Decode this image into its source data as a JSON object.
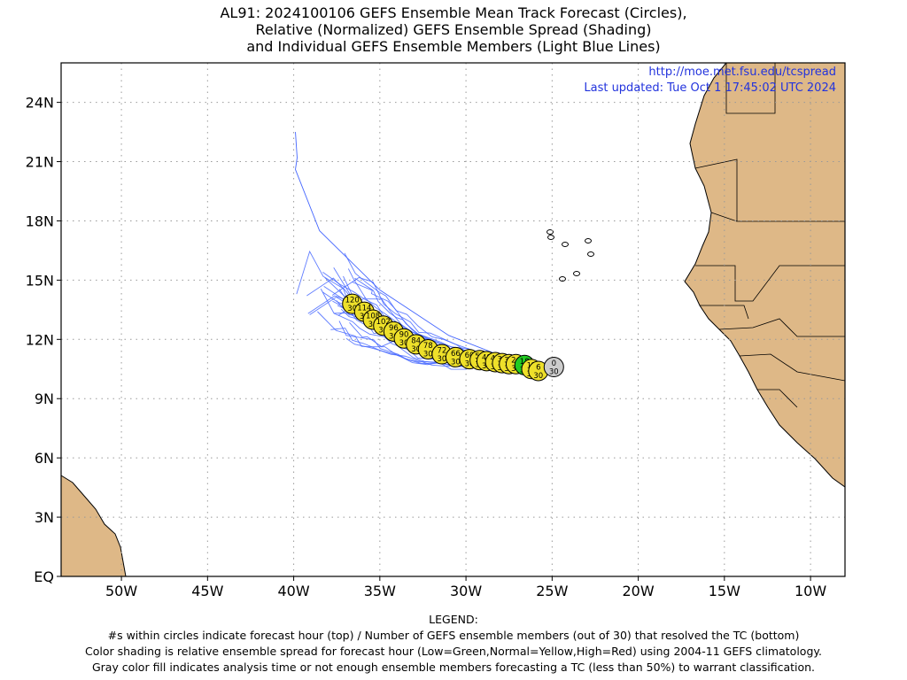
{
  "title": {
    "line1": "AL91: 2024100106 GEFS Ensemble Mean Track Forecast (Circles),",
    "line2": "Relative (Normalized) GEFS Ensemble Spread (Shading)",
    "line3": "and Individual GEFS Ensemble Members (Light Blue Lines)"
  },
  "source": {
    "url": "http://moe.met.fsu.edu/tcspread",
    "updated": "Last updated: Tue Oct 1 17:45:02 UTC 2024"
  },
  "axes": {
    "lon_range": [
      -53.5,
      -8
    ],
    "lat_range": [
      0,
      26
    ],
    "lat_ticks": [
      {
        "lat": 0,
        "label": "EQ"
      },
      {
        "lat": 3,
        "label": "3N"
      },
      {
        "lat": 6,
        "label": "6N"
      },
      {
        "lat": 9,
        "label": "9N"
      },
      {
        "lat": 12,
        "label": "12N"
      },
      {
        "lat": 15,
        "label": "15N"
      },
      {
        "lat": 18,
        "label": "18N"
      },
      {
        "lat": 21,
        "label": "21N"
      },
      {
        "lat": 24,
        "label": "24N"
      }
    ],
    "lon_ticks": [
      {
        "lon": -50,
        "label": "50W"
      },
      {
        "lon": -45,
        "label": "45W"
      },
      {
        "lon": -40,
        "label": "40W"
      },
      {
        "lon": -35,
        "label": "35W"
      },
      {
        "lon": -30,
        "label": "30W"
      },
      {
        "lon": -25,
        "label": "25W"
      },
      {
        "lon": -20,
        "label": "20W"
      },
      {
        "lon": -15,
        "label": "15W"
      },
      {
        "lon": -10,
        "label": "10W"
      }
    ],
    "grid": true
  },
  "colors": {
    "land": "#deb887",
    "ocean": "#ffffff",
    "member_tracks": "#4466ff",
    "circle_normal": "#eee02a",
    "circle_low": "#22cc22",
    "circle_gray": "#cccccc",
    "grid": "#999999"
  },
  "mean_track": [
    {
      "hour": "0",
      "members": "30",
      "lon": -24.9,
      "lat": 10.6,
      "class": "gray"
    },
    {
      "hour": "6",
      "members": "30",
      "lon": -25.8,
      "lat": 10.4,
      "class": "normal"
    },
    {
      "hour": "12",
      "members": "30",
      "lon": -26.2,
      "lat": 10.5,
      "class": "normal"
    },
    {
      "hour": "18",
      "members": "30",
      "lon": -26.6,
      "lat": 10.7,
      "class": "low"
    },
    {
      "hour": "24",
      "members": "30",
      "lon": -27.1,
      "lat": 10.75,
      "class": "normal"
    },
    {
      "hour": "30",
      "members": "30",
      "lon": -27.5,
      "lat": 10.75,
      "class": "normal"
    },
    {
      "hour": "36",
      "members": "30",
      "lon": -27.9,
      "lat": 10.8,
      "class": "normal"
    },
    {
      "hour": "42",
      "members": "30",
      "lon": -28.3,
      "lat": 10.85,
      "class": "normal"
    },
    {
      "hour": "48",
      "members": "30",
      "lon": -28.8,
      "lat": 10.9,
      "class": "normal"
    },
    {
      "hour": "54",
      "members": "30",
      "lon": -29.2,
      "lat": 10.95,
      "class": "normal"
    },
    {
      "hour": "60",
      "members": "30",
      "lon": -29.8,
      "lat": 11.0,
      "class": "normal"
    },
    {
      "hour": "66",
      "members": "30",
      "lon": -30.6,
      "lat": 11.1,
      "class": "normal"
    },
    {
      "hour": "72",
      "members": "30",
      "lon": -31.4,
      "lat": 11.25,
      "class": "normal"
    },
    {
      "hour": "78",
      "members": "30",
      "lon": -32.2,
      "lat": 11.5,
      "class": "normal"
    },
    {
      "hour": "84",
      "members": "30",
      "lon": -32.9,
      "lat": 11.75,
      "class": "normal"
    },
    {
      "hour": "90",
      "members": "30",
      "lon": -33.6,
      "lat": 12.05,
      "class": "normal"
    },
    {
      "hour": "96",
      "members": "30",
      "lon": -34.2,
      "lat": 12.4,
      "class": "normal"
    },
    {
      "hour": "102",
      "members": "30",
      "lon": -34.8,
      "lat": 12.7,
      "class": "normal"
    },
    {
      "hour": "108",
      "members": "30",
      "lon": -35.4,
      "lat": 13.0,
      "class": "normal"
    },
    {
      "hour": "114",
      "members": "30",
      "lon": -35.9,
      "lat": 13.4,
      "class": "normal"
    },
    {
      "hour": "120",
      "members": "30",
      "lon": -36.6,
      "lat": 13.8,
      "class": "normal"
    }
  ],
  "legend": {
    "heading": "LEGEND:",
    "line1": "#s within circles indicate forecast hour (top) / Number of GEFS ensemble members (out of 30) that resolved the TC (bottom)",
    "line2": "Color shading is relative ensemble spread for forecast hour (Low=Green,Normal=Yellow,High=Red) using 2004-11 GEFS climatology.",
    "line3": "Gray color fill indicates analysis time or not enough ensemble members forecasting a TC (less than 50%) to warrant classification."
  }
}
